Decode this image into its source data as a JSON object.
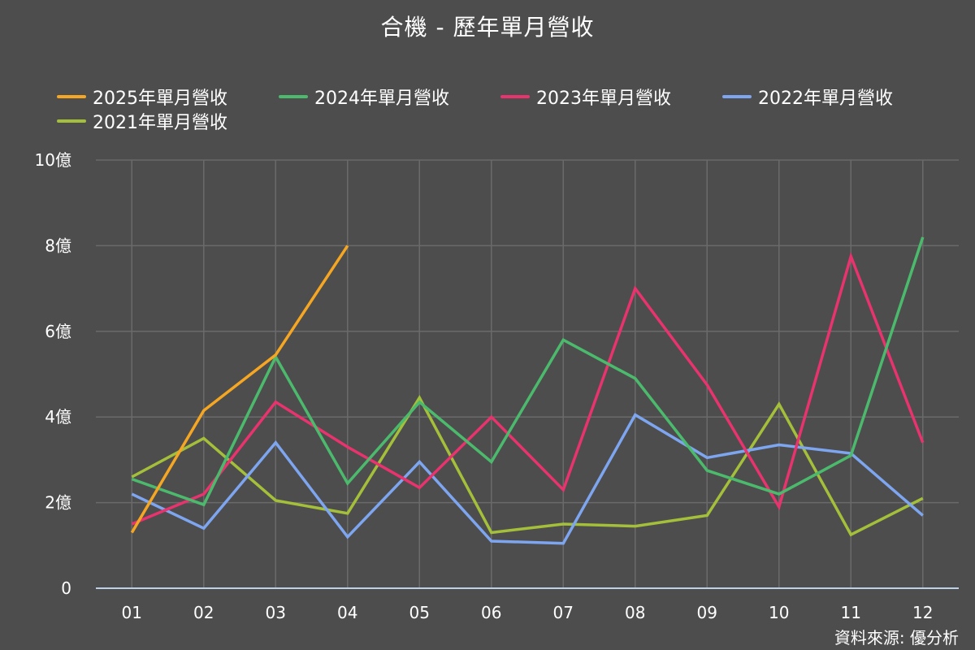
{
  "title": "合機 - 歷年單月營收",
  "source": "資料來源: 優分析",
  "colors": {
    "background": "#4d4d4d",
    "grid": "#6a6a6a",
    "axis": "#bcd0e8",
    "text": "#ffffff"
  },
  "chart_data": {
    "type": "line",
    "title": "合機 - 歷年單月營收",
    "categories": [
      "01",
      "02",
      "03",
      "04",
      "05",
      "06",
      "07",
      "08",
      "09",
      "10",
      "11",
      "12"
    ],
    "ylim": [
      0,
      10
    ],
    "yticks": [
      0,
      2,
      4,
      6,
      8,
      10
    ],
    "ytick_labels": [
      "0",
      "2億",
      "4億",
      "6億",
      "8億",
      "10億"
    ],
    "unit": "億",
    "grid": true,
    "legend_position": "top",
    "series": [
      {
        "name": "2025年單月營收",
        "color": "#f5a623",
        "values": [
          1.3,
          4.15,
          5.45,
          8.0,
          null,
          null,
          null,
          null,
          null,
          null,
          null,
          null
        ]
      },
      {
        "name": "2024年單月營收",
        "color": "#4cba6d",
        "values": [
          2.55,
          1.95,
          5.4,
          2.45,
          4.35,
          2.95,
          5.8,
          4.9,
          2.75,
          2.2,
          3.1,
          8.2
        ]
      },
      {
        "name": "2023年單月營收",
        "color": "#e8336e",
        "values": [
          1.5,
          2.2,
          4.35,
          3.3,
          2.35,
          4.0,
          2.3,
          7.0,
          4.75,
          1.9,
          7.75,
          3.4
        ]
      },
      {
        "name": "2022年單月營收",
        "color": "#7ea6f0",
        "values": [
          2.2,
          1.4,
          3.4,
          1.2,
          2.95,
          1.1,
          1.05,
          4.05,
          3.05,
          3.35,
          3.15,
          1.7
        ]
      },
      {
        "name": "2021年單月營收",
        "color": "#a4bf3a",
        "values": [
          2.6,
          3.5,
          2.05,
          1.75,
          4.45,
          1.3,
          1.5,
          1.45,
          1.7,
          4.3,
          1.25,
          2.1
        ]
      }
    ]
  }
}
